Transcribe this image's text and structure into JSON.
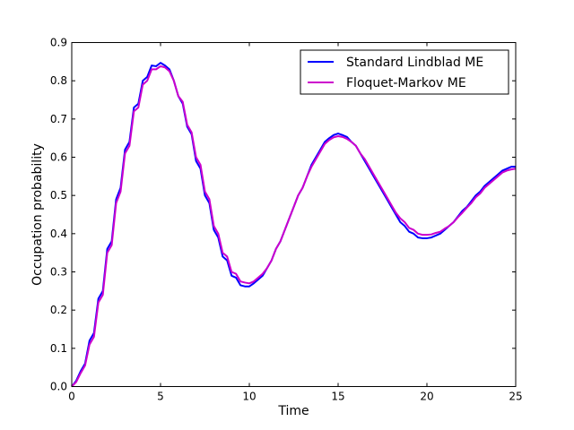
{
  "chart_data": {
    "type": "line",
    "title": "",
    "xlabel": "Time",
    "ylabel": "Occupation probability",
    "xlim": [
      0,
      25
    ],
    "ylim": [
      0,
      0.9
    ],
    "xticks": [
      0,
      5,
      10,
      15,
      20,
      25
    ],
    "xtick_labels": [
      "0",
      "5",
      "10",
      "15",
      "20",
      "25"
    ],
    "yticks": [
      0.0,
      0.1,
      0.2,
      0.3,
      0.4,
      0.5,
      0.6,
      0.7,
      0.8,
      0.9
    ],
    "ytick_labels": [
      "0.0",
      "0.1",
      "0.2",
      "0.3",
      "0.4",
      "0.5",
      "0.6",
      "0.7",
      "0.8",
      "0.9"
    ],
    "grid": false,
    "legend_position": "top-right",
    "series": [
      {
        "name": "Standard Lindblad ME",
        "color": "#0000ff",
        "x": [
          0,
          0.25,
          0.5,
          0.75,
          1.0,
          1.25,
          1.5,
          1.75,
          2.0,
          2.25,
          2.5,
          2.75,
          3.0,
          3.25,
          3.5,
          3.75,
          4.0,
          4.25,
          4.5,
          4.75,
          5.0,
          5.25,
          5.5,
          5.75,
          6.0,
          6.25,
          6.5,
          6.75,
          7.0,
          7.25,
          7.5,
          7.75,
          8.0,
          8.25,
          8.5,
          8.75,
          9.0,
          9.25,
          9.5,
          9.75,
          10.0,
          10.25,
          10.5,
          10.75,
          11.0,
          11.25,
          11.5,
          11.75,
          12.0,
          12.25,
          12.5,
          12.75,
          13.0,
          13.25,
          13.5,
          13.75,
          14.0,
          14.25,
          14.5,
          14.75,
          15.0,
          15.25,
          15.5,
          15.75,
          16.0,
          16.25,
          16.5,
          16.75,
          17.0,
          17.25,
          17.5,
          17.75,
          18.0,
          18.25,
          18.5,
          18.75,
          19.0,
          19.25,
          19.5,
          19.75,
          20.0,
          20.25,
          20.5,
          20.75,
          21.0,
          21.25,
          21.5,
          21.75,
          22.0,
          22.25,
          22.5,
          22.75,
          23.0,
          23.25,
          23.5,
          23.75,
          24.0,
          24.25,
          24.5,
          24.75,
          25.0
        ],
        "y": [
          0.0,
          0.015,
          0.04,
          0.06,
          0.12,
          0.14,
          0.23,
          0.25,
          0.36,
          0.38,
          0.49,
          0.52,
          0.62,
          0.64,
          0.73,
          0.74,
          0.8,
          0.81,
          0.84,
          0.838,
          0.847,
          0.84,
          0.83,
          0.8,
          0.76,
          0.74,
          0.68,
          0.66,
          0.59,
          0.57,
          0.5,
          0.48,
          0.41,
          0.39,
          0.34,
          0.33,
          0.29,
          0.285,
          0.265,
          0.262,
          0.262,
          0.27,
          0.28,
          0.29,
          0.31,
          0.33,
          0.36,
          0.38,
          0.41,
          0.44,
          0.47,
          0.5,
          0.52,
          0.55,
          0.58,
          0.6,
          0.62,
          0.64,
          0.65,
          0.658,
          0.662,
          0.658,
          0.653,
          0.64,
          0.63,
          0.61,
          0.59,
          0.57,
          0.55,
          0.53,
          0.51,
          0.49,
          0.47,
          0.45,
          0.43,
          0.42,
          0.405,
          0.4,
          0.39,
          0.388,
          0.388,
          0.39,
          0.395,
          0.4,
          0.41,
          0.42,
          0.43,
          0.445,
          0.46,
          0.47,
          0.485,
          0.5,
          0.51,
          0.525,
          0.535,
          0.545,
          0.555,
          0.565,
          0.57,
          0.575,
          0.575
        ]
      },
      {
        "name": "Floquet-Markov ME",
        "color": "#cc00cc",
        "x": [
          0,
          0.25,
          0.5,
          0.75,
          1.0,
          1.25,
          1.5,
          1.75,
          2.0,
          2.25,
          2.5,
          2.75,
          3.0,
          3.25,
          3.5,
          3.75,
          4.0,
          4.25,
          4.5,
          4.75,
          5.0,
          5.25,
          5.5,
          5.75,
          6.0,
          6.25,
          6.5,
          6.75,
          7.0,
          7.25,
          7.5,
          7.75,
          8.0,
          8.25,
          8.5,
          8.75,
          9.0,
          9.25,
          9.5,
          9.75,
          10.0,
          10.25,
          10.5,
          10.75,
          11.0,
          11.25,
          11.5,
          11.75,
          12.0,
          12.25,
          12.5,
          12.75,
          13.0,
          13.25,
          13.5,
          13.75,
          14.0,
          14.25,
          14.5,
          14.75,
          15.0,
          15.25,
          15.5,
          15.75,
          16.0,
          16.25,
          16.5,
          16.75,
          17.0,
          17.25,
          17.5,
          17.75,
          18.0,
          18.25,
          18.5,
          18.75,
          19.0,
          19.25,
          19.5,
          19.75,
          20.0,
          20.25,
          20.5,
          20.75,
          21.0,
          21.25,
          21.5,
          21.75,
          22.0,
          22.25,
          22.5,
          22.75,
          23.0,
          23.25,
          23.5,
          23.75,
          24.0,
          24.25,
          24.5,
          24.75,
          25.0
        ],
        "y": [
          0.0,
          0.012,
          0.035,
          0.055,
          0.11,
          0.13,
          0.22,
          0.24,
          0.35,
          0.37,
          0.48,
          0.51,
          0.61,
          0.63,
          0.72,
          0.73,
          0.79,
          0.8,
          0.83,
          0.83,
          0.838,
          0.835,
          0.825,
          0.8,
          0.76,
          0.745,
          0.685,
          0.665,
          0.6,
          0.58,
          0.51,
          0.49,
          0.42,
          0.4,
          0.35,
          0.34,
          0.3,
          0.295,
          0.275,
          0.272,
          0.27,
          0.275,
          0.285,
          0.295,
          0.31,
          0.33,
          0.36,
          0.38,
          0.41,
          0.44,
          0.47,
          0.5,
          0.52,
          0.55,
          0.575,
          0.595,
          0.615,
          0.635,
          0.645,
          0.652,
          0.655,
          0.653,
          0.648,
          0.64,
          0.63,
          0.61,
          0.595,
          0.575,
          0.555,
          0.535,
          0.515,
          0.495,
          0.475,
          0.455,
          0.44,
          0.43,
          0.415,
          0.41,
          0.4,
          0.397,
          0.397,
          0.398,
          0.402,
          0.405,
          0.413,
          0.42,
          0.43,
          0.443,
          0.455,
          0.468,
          0.48,
          0.495,
          0.505,
          0.52,
          0.53,
          0.54,
          0.55,
          0.56,
          0.565,
          0.568,
          0.57
        ]
      }
    ]
  }
}
